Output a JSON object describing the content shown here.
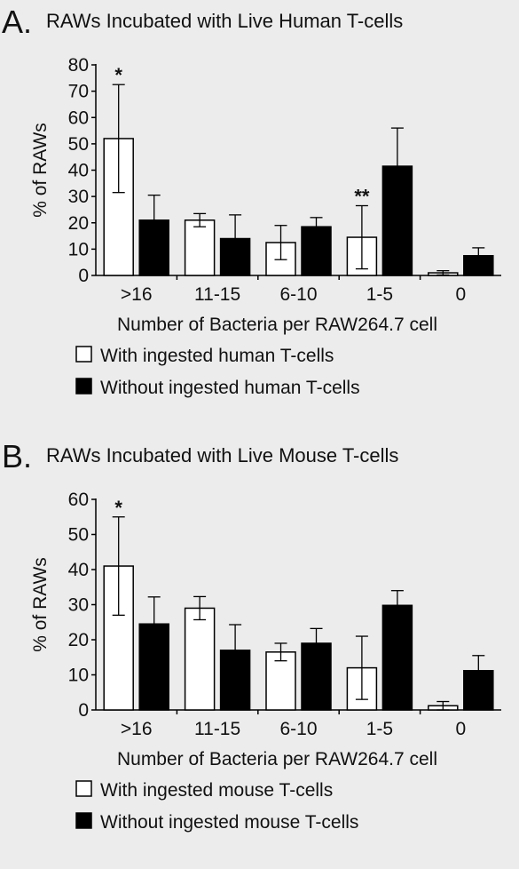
{
  "chart_data": [
    {
      "type": "bar",
      "panel_label": "A.",
      "title": "RAWs Incubated with Live Human T-cells",
      "xlabel": "Number of Bacteria per RAW264.7 cell",
      "ylabel": "% of RAWs",
      "ylim": [
        0,
        80
      ],
      "yticks": [
        0,
        10,
        20,
        30,
        40,
        50,
        60,
        70,
        80
      ],
      "grid": false,
      "legend_position": "below",
      "categories": [
        ">16",
        "11-15",
        "6-10",
        "1-5",
        "0"
      ],
      "series": [
        {
          "name": "With ingested human T-cells",
          "fill": "#ffffff",
          "values": [
            52,
            21,
            12.5,
            14.5,
            1
          ],
          "error": [
            20.5,
            2.5,
            6.5,
            12,
            0.8
          ]
        },
        {
          "name": "Without ingested human T-cells",
          "fill": "#000000",
          "values": [
            21,
            14,
            18.5,
            41.5,
            7.5
          ],
          "error": [
            9.5,
            9,
            3.5,
            14.5,
            3
          ]
        }
      ],
      "annotations": [
        {
          "text": "*",
          "category": ">16",
          "series": 0
        },
        {
          "text": "**",
          "category": "1-5",
          "series": 0
        }
      ]
    },
    {
      "type": "bar",
      "panel_label": "B.",
      "title": "RAWs Incubated with Live Mouse T-cells",
      "xlabel": "Number of Bacteria per RAW264.7 cell",
      "ylabel": "% of RAWs",
      "ylim": [
        0,
        60
      ],
      "yticks": [
        0,
        10,
        20,
        30,
        40,
        50,
        60
      ],
      "grid": false,
      "legend_position": "below",
      "categories": [
        ">16",
        "11-15",
        "6-10",
        "1-5",
        "0"
      ],
      "series": [
        {
          "name": "With ingested mouse T-cells",
          "fill": "#ffffff",
          "values": [
            41,
            29,
            16.5,
            12,
            1.2
          ],
          "error": [
            14,
            3.3,
            2.5,
            9,
            1.2
          ]
        },
        {
          "name": "Without ingested mouse T-cells",
          "fill": "#000000",
          "values": [
            24.5,
            17,
            19,
            29.8,
            11.2
          ],
          "error": [
            7.7,
            7.3,
            4.2,
            4.2,
            4.3
          ]
        }
      ],
      "annotations": [
        {
          "text": "*",
          "category": ">16",
          "series": 0
        }
      ]
    }
  ]
}
